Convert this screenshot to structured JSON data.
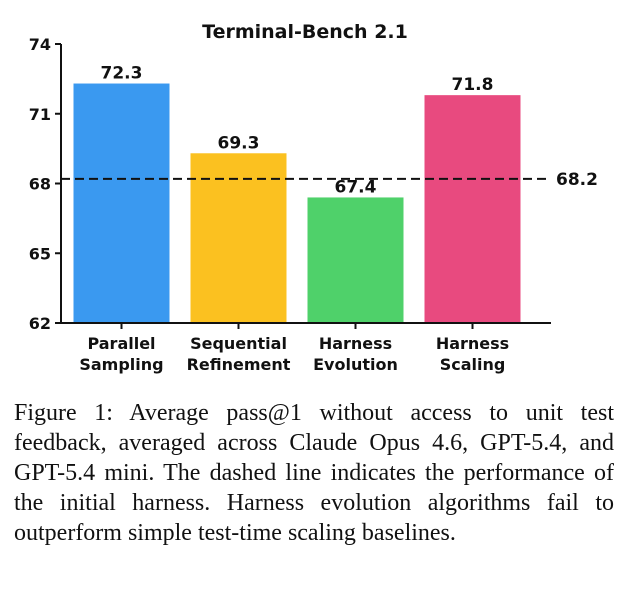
{
  "chart_data": {
    "type": "bar",
    "title": "Terminal-Bench 2.1",
    "categories": [
      [
        "Parallel",
        "Sampling"
      ],
      [
        "Sequential",
        "Refinement"
      ],
      [
        "Harness",
        "Evolution"
      ],
      [
        "Harness",
        "Scaling"
      ]
    ],
    "values": [
      72.3,
      69.3,
      67.4,
      71.8
    ],
    "value_labels": [
      "72.3",
      "69.3",
      "67.4",
      "71.8"
    ],
    "colors": [
      "#3a99f0",
      "#fbc120",
      "#4fd16a",
      "#e84a7f"
    ],
    "ylim": [
      62,
      74
    ],
    "yticks": [
      62,
      65,
      68,
      71,
      74
    ],
    "ytick_labels": [
      "62",
      "65",
      "68",
      "71",
      "74"
    ],
    "baseline": {
      "value": 68.2,
      "label": "68.2",
      "style": "dashed"
    },
    "xlabel": "",
    "ylabel": "",
    "grid": false,
    "legend": "none"
  },
  "caption": {
    "text": "Figure 1: Average pass@1 without access to unit test feedback, averaged across Claude Opus 4.6, GPT-5.4, and GPT-5.4 mini. The dashed line indicates the performance of the initial harness. Harness evolution algorithms fail to outperform simple test-time scaling baselines."
  }
}
